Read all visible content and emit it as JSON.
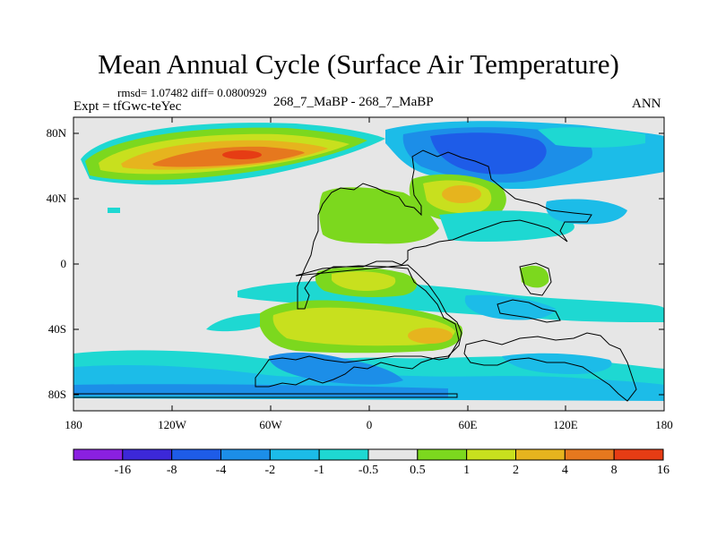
{
  "title": "Mean Annual Cycle (Surface Air Temperature)",
  "stats": "rmsd= 1.07482 diff= 0.0800929",
  "experiment": "Expt = tfGwc-teYec",
  "cases": "268_7_MaBP - 268_7_MaBP",
  "season": "ANN",
  "lat_ticks": [
    "80N",
    "40N",
    "0",
    "40S",
    "80S"
  ],
  "lon_ticks": [
    "180",
    "120W",
    "60W",
    "0",
    "60E",
    "120E",
    "180"
  ],
  "colorbar": {
    "labels": [
      "-16",
      "-8",
      "-4",
      "-2",
      "-1",
      "-0.5",
      "0.5",
      "1",
      "2",
      "4",
      "8",
      "16"
    ],
    "colors": [
      "#8a20e0",
      "#3c28d8",
      "#1e5ce8",
      "#1c8ee8",
      "#1cbce8",
      "#1ed8d2",
      "#e6e6e6",
      "#7cd81e",
      "#c8e01e",
      "#e6b41e",
      "#e6781e",
      "#e63c14"
    ]
  }
}
